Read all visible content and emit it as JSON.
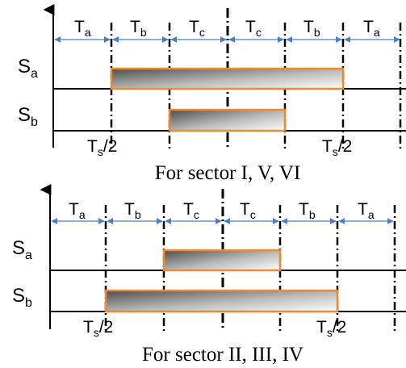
{
  "panels": [
    {
      "interval_labels": [
        {
          "main": "T",
          "sub": "a"
        },
        {
          "main": "T",
          "sub": "b"
        },
        {
          "main": "T",
          "sub": "c"
        },
        {
          "main": "T",
          "sub": "c"
        },
        {
          "main": "T",
          "sub": "b"
        },
        {
          "main": "T",
          "sub": "a"
        }
      ],
      "signals": [
        {
          "main": "S",
          "sub": "a"
        },
        {
          "main": "S",
          "sub": "b"
        }
      ],
      "half_period_labels": [
        {
          "main": "T",
          "sub": "s",
          "suffix": "/2"
        },
        {
          "main": "T",
          "sub": "s",
          "suffix": "/2"
        }
      ],
      "caption": "For sector I, V, VI"
    },
    {
      "interval_labels": [
        {
          "main": "T",
          "sub": "a"
        },
        {
          "main": "T",
          "sub": "b"
        },
        {
          "main": "T",
          "sub": "c"
        },
        {
          "main": "T",
          "sub": "c"
        },
        {
          "main": "T",
          "sub": "b"
        },
        {
          "main": "T",
          "sub": "a"
        }
      ],
      "signals": [
        {
          "main": "S",
          "sub": "a"
        },
        {
          "main": "S",
          "sub": "b"
        }
      ],
      "half_period_labels": [
        {
          "main": "T",
          "sub": "s",
          "suffix": "/2"
        },
        {
          "main": "T",
          "sub": "s",
          "suffix": "/2"
        }
      ],
      "caption": "For sector II, III, IV"
    }
  ],
  "colors": {
    "arrow": "#4a7fc1",
    "pulse_border": "#f08a2e",
    "line": "#000000"
  }
}
